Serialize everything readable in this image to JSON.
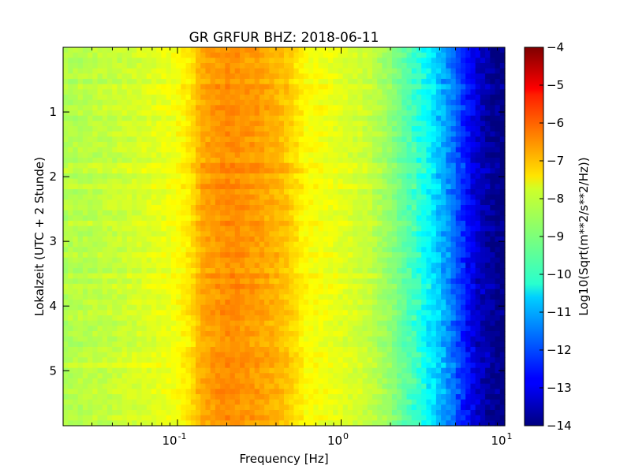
{
  "chart_data": {
    "type": "heatmap",
    "title": "GR GRFUR BHZ: 2018-06-11",
    "xlabel": "Frequency [Hz]",
    "ylabel": "Lokalzeit (UTC + 2 Stunde)",
    "xscale": "log",
    "xlim": [
      0.02,
      10
    ],
    "ylim": [
      5.85,
      0
    ],
    "x_ticks": [
      {
        "value": 0.1,
        "base": "10",
        "exp": "-1"
      },
      {
        "value": 1,
        "base": "10",
        "exp": "0"
      },
      {
        "value": 10,
        "base": "10",
        "exp": "1"
      }
    ],
    "y_ticks": [
      {
        "value": 1,
        "label": "1"
      },
      {
        "value": 2,
        "label": "2"
      },
      {
        "value": 3,
        "label": "3"
      },
      {
        "value": 4,
        "label": "4"
      },
      {
        "value": 5,
        "label": "5"
      }
    ],
    "colorbar": {
      "label": "Log10(Sqrt(m**2/s**2/Hz))",
      "min": -14,
      "max": -4,
      "colormap": "jet",
      "ticks": [
        {
          "value": -4,
          "label": "−4"
        },
        {
          "value": -5,
          "label": "−5"
        },
        {
          "value": -6,
          "label": "−6"
        },
        {
          "value": -7,
          "label": "−7"
        },
        {
          "value": -8,
          "label": "−8"
        },
        {
          "value": -9,
          "label": "−9"
        },
        {
          "value": -10,
          "label": "−10"
        },
        {
          "value": -11,
          "label": "−11"
        },
        {
          "value": -12,
          "label": "−12"
        },
        {
          "value": -13,
          "label": "−13"
        },
        {
          "value": -14,
          "label": "−14"
        }
      ]
    },
    "frequency_profile": [
      {
        "f": 0.02,
        "value": -8.5
      },
      {
        "f": 0.04,
        "value": -8.3
      },
      {
        "f": 0.06,
        "value": -8.1
      },
      {
        "f": 0.09,
        "value": -7.9
      },
      {
        "f": 0.12,
        "value": -7.5
      },
      {
        "f": 0.14,
        "value": -6.9
      },
      {
        "f": 0.2,
        "value": -6.6
      },
      {
        "f": 0.3,
        "value": -6.75
      },
      {
        "f": 0.45,
        "value": -7.1
      },
      {
        "f": 0.6,
        "value": -7.7
      },
      {
        "f": 1.0,
        "value": -8.0
      },
      {
        "f": 1.5,
        "value": -8.3
      },
      {
        "f": 2.0,
        "value": -8.8
      },
      {
        "f": 3.0,
        "value": -9.8
      },
      {
        "f": 4.0,
        "value": -10.8
      },
      {
        "f": 5.0,
        "value": -11.8
      },
      {
        "f": 6.0,
        "value": -12.7
      },
      {
        "f": 7.0,
        "value": -13.3
      },
      {
        "f": 8.5,
        "value": -13.8
      },
      {
        "f": 10.0,
        "value": -14.0
      }
    ]
  }
}
